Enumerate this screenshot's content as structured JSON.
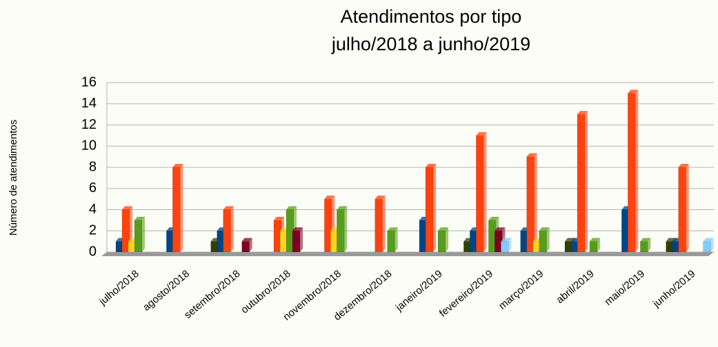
{
  "chart_data": {
    "type": "bar",
    "title": "Atendimentos por tipo",
    "subtitle": "julho/2018 a junho/2019",
    "y_label": "Número de atendimentos",
    "categories": [
      "julho/2018",
      "agosto/2018",
      "setembro/2018",
      "outubro/2018",
      "novembro/2018",
      "dezembro/2018",
      "janeiro/2019",
      "fevereiro/2019",
      "março/2019",
      "abril/2019",
      "maio/2019",
      "junho/2019"
    ],
    "series": [
      {
        "color": "#314004",
        "values": [
          0,
          0,
          1,
          0,
          0,
          0,
          0,
          1,
          0,
          1,
          0,
          1
        ]
      },
      {
        "color": "#004586",
        "values": [
          1,
          2,
          2,
          0,
          0,
          0,
          3,
          2,
          2,
          1,
          4,
          1
        ]
      },
      {
        "color": "#ff420e",
        "values": [
          4,
          8,
          4,
          3,
          5,
          5,
          8,
          11,
          9,
          13,
          15,
          8
        ]
      },
      {
        "color": "#ffd320",
        "values": [
          1,
          0,
          0,
          2,
          2,
          0,
          0,
          0,
          1,
          0,
          0,
          0
        ]
      },
      {
        "color": "#579d1c",
        "values": [
          3,
          0,
          0,
          4,
          4,
          2,
          2,
          3,
          2,
          1,
          1,
          0
        ]
      },
      {
        "color": "#7e0021",
        "values": [
          0,
          0,
          1,
          2,
          0,
          0,
          0,
          2,
          0,
          0,
          0,
          0
        ]
      },
      {
        "color": "#83caff",
        "values": [
          0,
          0,
          0,
          0,
          0,
          0,
          0,
          1,
          0,
          0,
          0,
          1
        ]
      }
    ],
    "ylim": [
      0,
      16
    ],
    "yticks": [
      0,
      2,
      4,
      6,
      8,
      10,
      12,
      14,
      16
    ],
    "grid": true
  }
}
